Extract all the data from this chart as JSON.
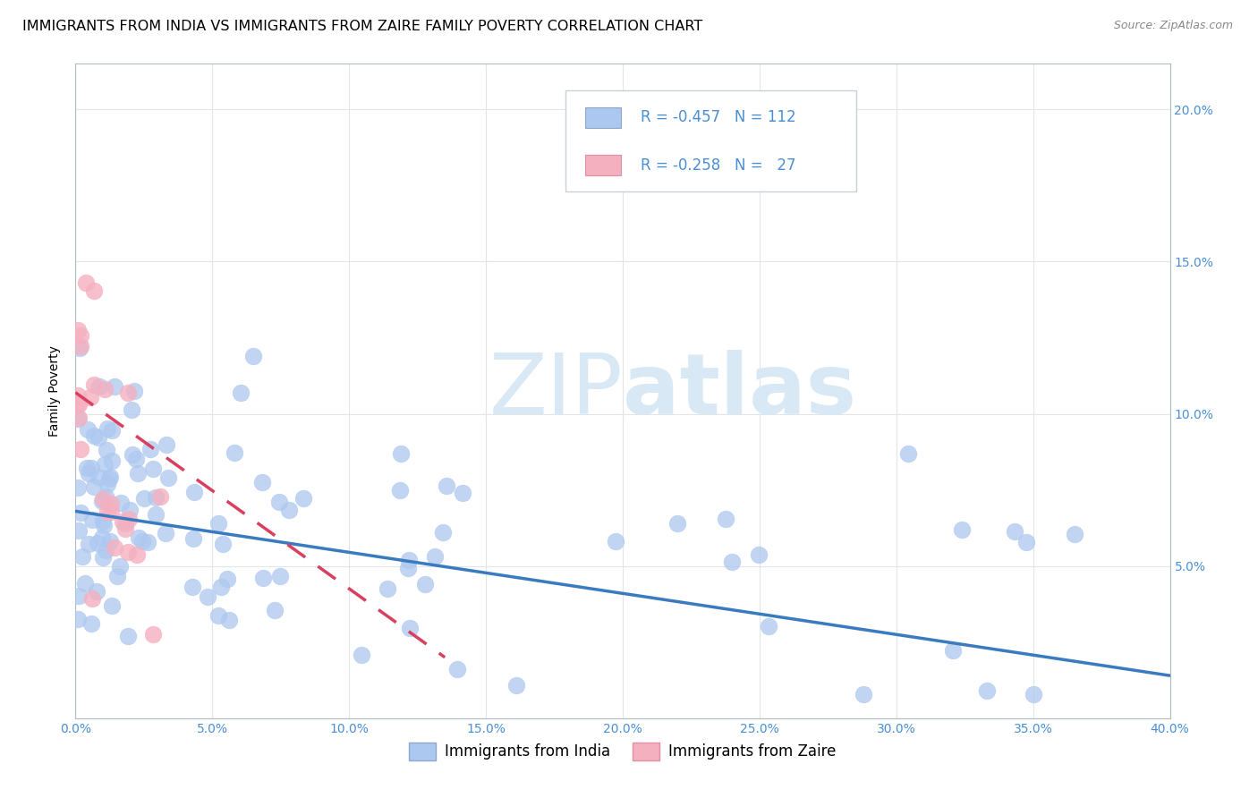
{
  "title": "IMMIGRANTS FROM INDIA VS IMMIGRANTS FROM ZAIRE FAMILY POVERTY CORRELATION CHART",
  "source": "Source: ZipAtlas.com",
  "ylabel": "Family Poverty",
  "legend_india": "Immigrants from India",
  "legend_zaire": "Immigrants from Zaire",
  "india_color": "#adc8f0",
  "india_edge_color": "#adc8f0",
  "india_line_color": "#3a7abf",
  "zaire_color": "#f5b0c0",
  "zaire_edge_color": "#f5b0c0",
  "zaire_line_color": "#d94060",
  "watermark_color": "#d8e8f5",
  "background_color": "#ffffff",
  "grid_color": "#e0e5ea",
  "text_color_blue": "#4a8fd4",
  "title_fontsize": 11.5,
  "axis_label_fontsize": 10,
  "tick_fontsize": 10,
  "legend_fontsize": 12,
  "xlim": [
    0.0,
    0.4
  ],
  "ylim": [
    0.0,
    0.215
  ],
  "x_ticks": [
    0.0,
    0.05,
    0.1,
    0.15,
    0.2,
    0.25,
    0.3,
    0.35,
    0.4
  ],
  "y_ticks": [
    0.05,
    0.1,
    0.15,
    0.2
  ],
  "india_line_x": [
    0.0,
    0.4
  ],
  "india_line_y": [
    0.068,
    0.014
  ],
  "zaire_line_x": [
    0.0,
    0.135
  ],
  "zaire_line_y": [
    0.107,
    0.02
  ]
}
